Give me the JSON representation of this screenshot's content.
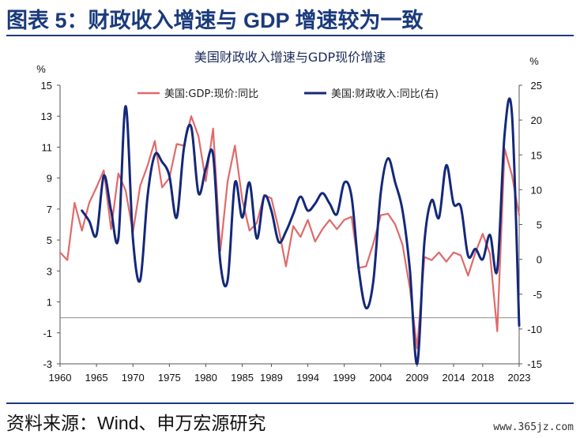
{
  "header": {
    "title": "图表 5：财政收入增速与 GDP 增速较为一致"
  },
  "footer": {
    "source": "资料来源：Wind、申万宏源研究",
    "watermark": "www.365jz.com"
  },
  "chart_data": {
    "type": "line",
    "title": "美国财政收入增速与GDP现价增速",
    "y_left_unit": "%",
    "y_right_unit": "%",
    "y_left_range": [
      -3,
      15
    ],
    "y_left_ticks": [
      15,
      13,
      11,
      9,
      7,
      5,
      3,
      1,
      -1,
      -3
    ],
    "y_right_range": [
      -15,
      25
    ],
    "y_right_ticks": [
      25,
      20,
      15,
      10,
      5,
      0,
      -5,
      -10,
      -15
    ],
    "x_range": [
      1960,
      2023
    ],
    "x_ticks": [
      1960,
      1965,
      1970,
      1975,
      1980,
      1985,
      1989,
      1994,
      1999,
      2004,
      2009,
      2014,
      2018,
      2023
    ],
    "legend": [
      {
        "name": "美国:GDP:现价:同比",
        "color": "#e06a6a"
      },
      {
        "name": "美国:财政收入:同比(右)",
        "color": "#14287a"
      }
    ],
    "series": [
      {
        "name": "美国:GDP:现价:同比",
        "axis": "left",
        "color": "#e06a6a",
        "x": [
          1960,
          1961,
          1962,
          1963,
          1964,
          1965,
          1966,
          1967,
          1968,
          1969,
          1970,
          1971,
          1972,
          1973,
          1974,
          1975,
          1976,
          1977,
          1978,
          1979,
          1980,
          1981,
          1982,
          1983,
          1984,
          1985,
          1986,
          1987,
          1988,
          1989,
          1990,
          1991,
          1992,
          1993,
          1994,
          1995,
          1996,
          1997,
          1998,
          1999,
          2000,
          2001,
          2002,
          2003,
          2004,
          2005,
          2006,
          2007,
          2008,
          2009,
          2010,
          2011,
          2012,
          2013,
          2014,
          2015,
          2016,
          2017,
          2018,
          2019,
          2020,
          2021,
          2022,
          2023
        ],
        "y": [
          4.2,
          3.7,
          7.4,
          5.6,
          7.4,
          8.4,
          9.5,
          5.7,
          9.3,
          8.2,
          5.5,
          8.5,
          9.8,
          11.4,
          8.4,
          9.0,
          11.2,
          11.1,
          13.0,
          11.7,
          8.8,
          12.2,
          4.3,
          8.8,
          11.1,
          7.6,
          5.6,
          6.1,
          7.9,
          7.7,
          5.7,
          3.3,
          5.9,
          5.2,
          6.3,
          4.9,
          5.7,
          6.3,
          5.7,
          6.3,
          6.5,
          3.2,
          3.3,
          4.8,
          6.6,
          6.7,
          6.0,
          4.7,
          1.9,
          -2.0,
          3.9,
          3.7,
          4.2,
          3.6,
          4.2,
          4.0,
          2.7,
          4.2,
          5.4,
          4.1,
          -0.9,
          10.9,
          9.2,
          6.6
        ]
      },
      {
        "name": "美国:财政收入:同比(右)",
        "axis": "right",
        "color": "#14287a",
        "x": [
          1963,
          1964,
          1965,
          1966,
          1967,
          1968,
          1969,
          1970,
          1971,
          1972,
          1973,
          1974,
          1975,
          1976,
          1977,
          1978,
          1979,
          1980,
          1981,
          1982,
          1983,
          1984,
          1985,
          1986,
          1987,
          1988,
          1989,
          1990,
          1991,
          1992,
          1993,
          1994,
          1995,
          1996,
          1997,
          1998,
          1999,
          2000,
          2001,
          2002,
          2003,
          2004,
          2005,
          2006,
          2007,
          2008,
          2009,
          2010,
          2011,
          2012,
          2013,
          2014,
          2015,
          2016,
          2017,
          2018,
          2019,
          2020,
          2021,
          2022,
          2023
        ],
        "y": [
          7.0,
          5.5,
          3.5,
          12.0,
          7.0,
          3.0,
          22.0,
          3.0,
          -3.0,
          9.0,
          15.0,
          14.0,
          12.0,
          6.0,
          16.0,
          19.0,
          9.5,
          13.0,
          15.0,
          -0.5,
          -3.0,
          11.0,
          6.0,
          11.0,
          3.0,
          9.0,
          7.0,
          2.5,
          4.0,
          6.5,
          9.0,
          7.0,
          8.0,
          9.5,
          8.0,
          6.5,
          11.0,
          9.0,
          -1.5,
          -7.0,
          -3.0,
          9.5,
          14.5,
          11.0,
          7.0,
          -1.5,
          -15.0,
          2.5,
          8.5,
          6.0,
          13.5,
          8.0,
          7.5,
          0.5,
          1.5,
          0.0,
          3.5,
          -1.5,
          18.0,
          21.0,
          -9.5
        ]
      }
    ]
  }
}
